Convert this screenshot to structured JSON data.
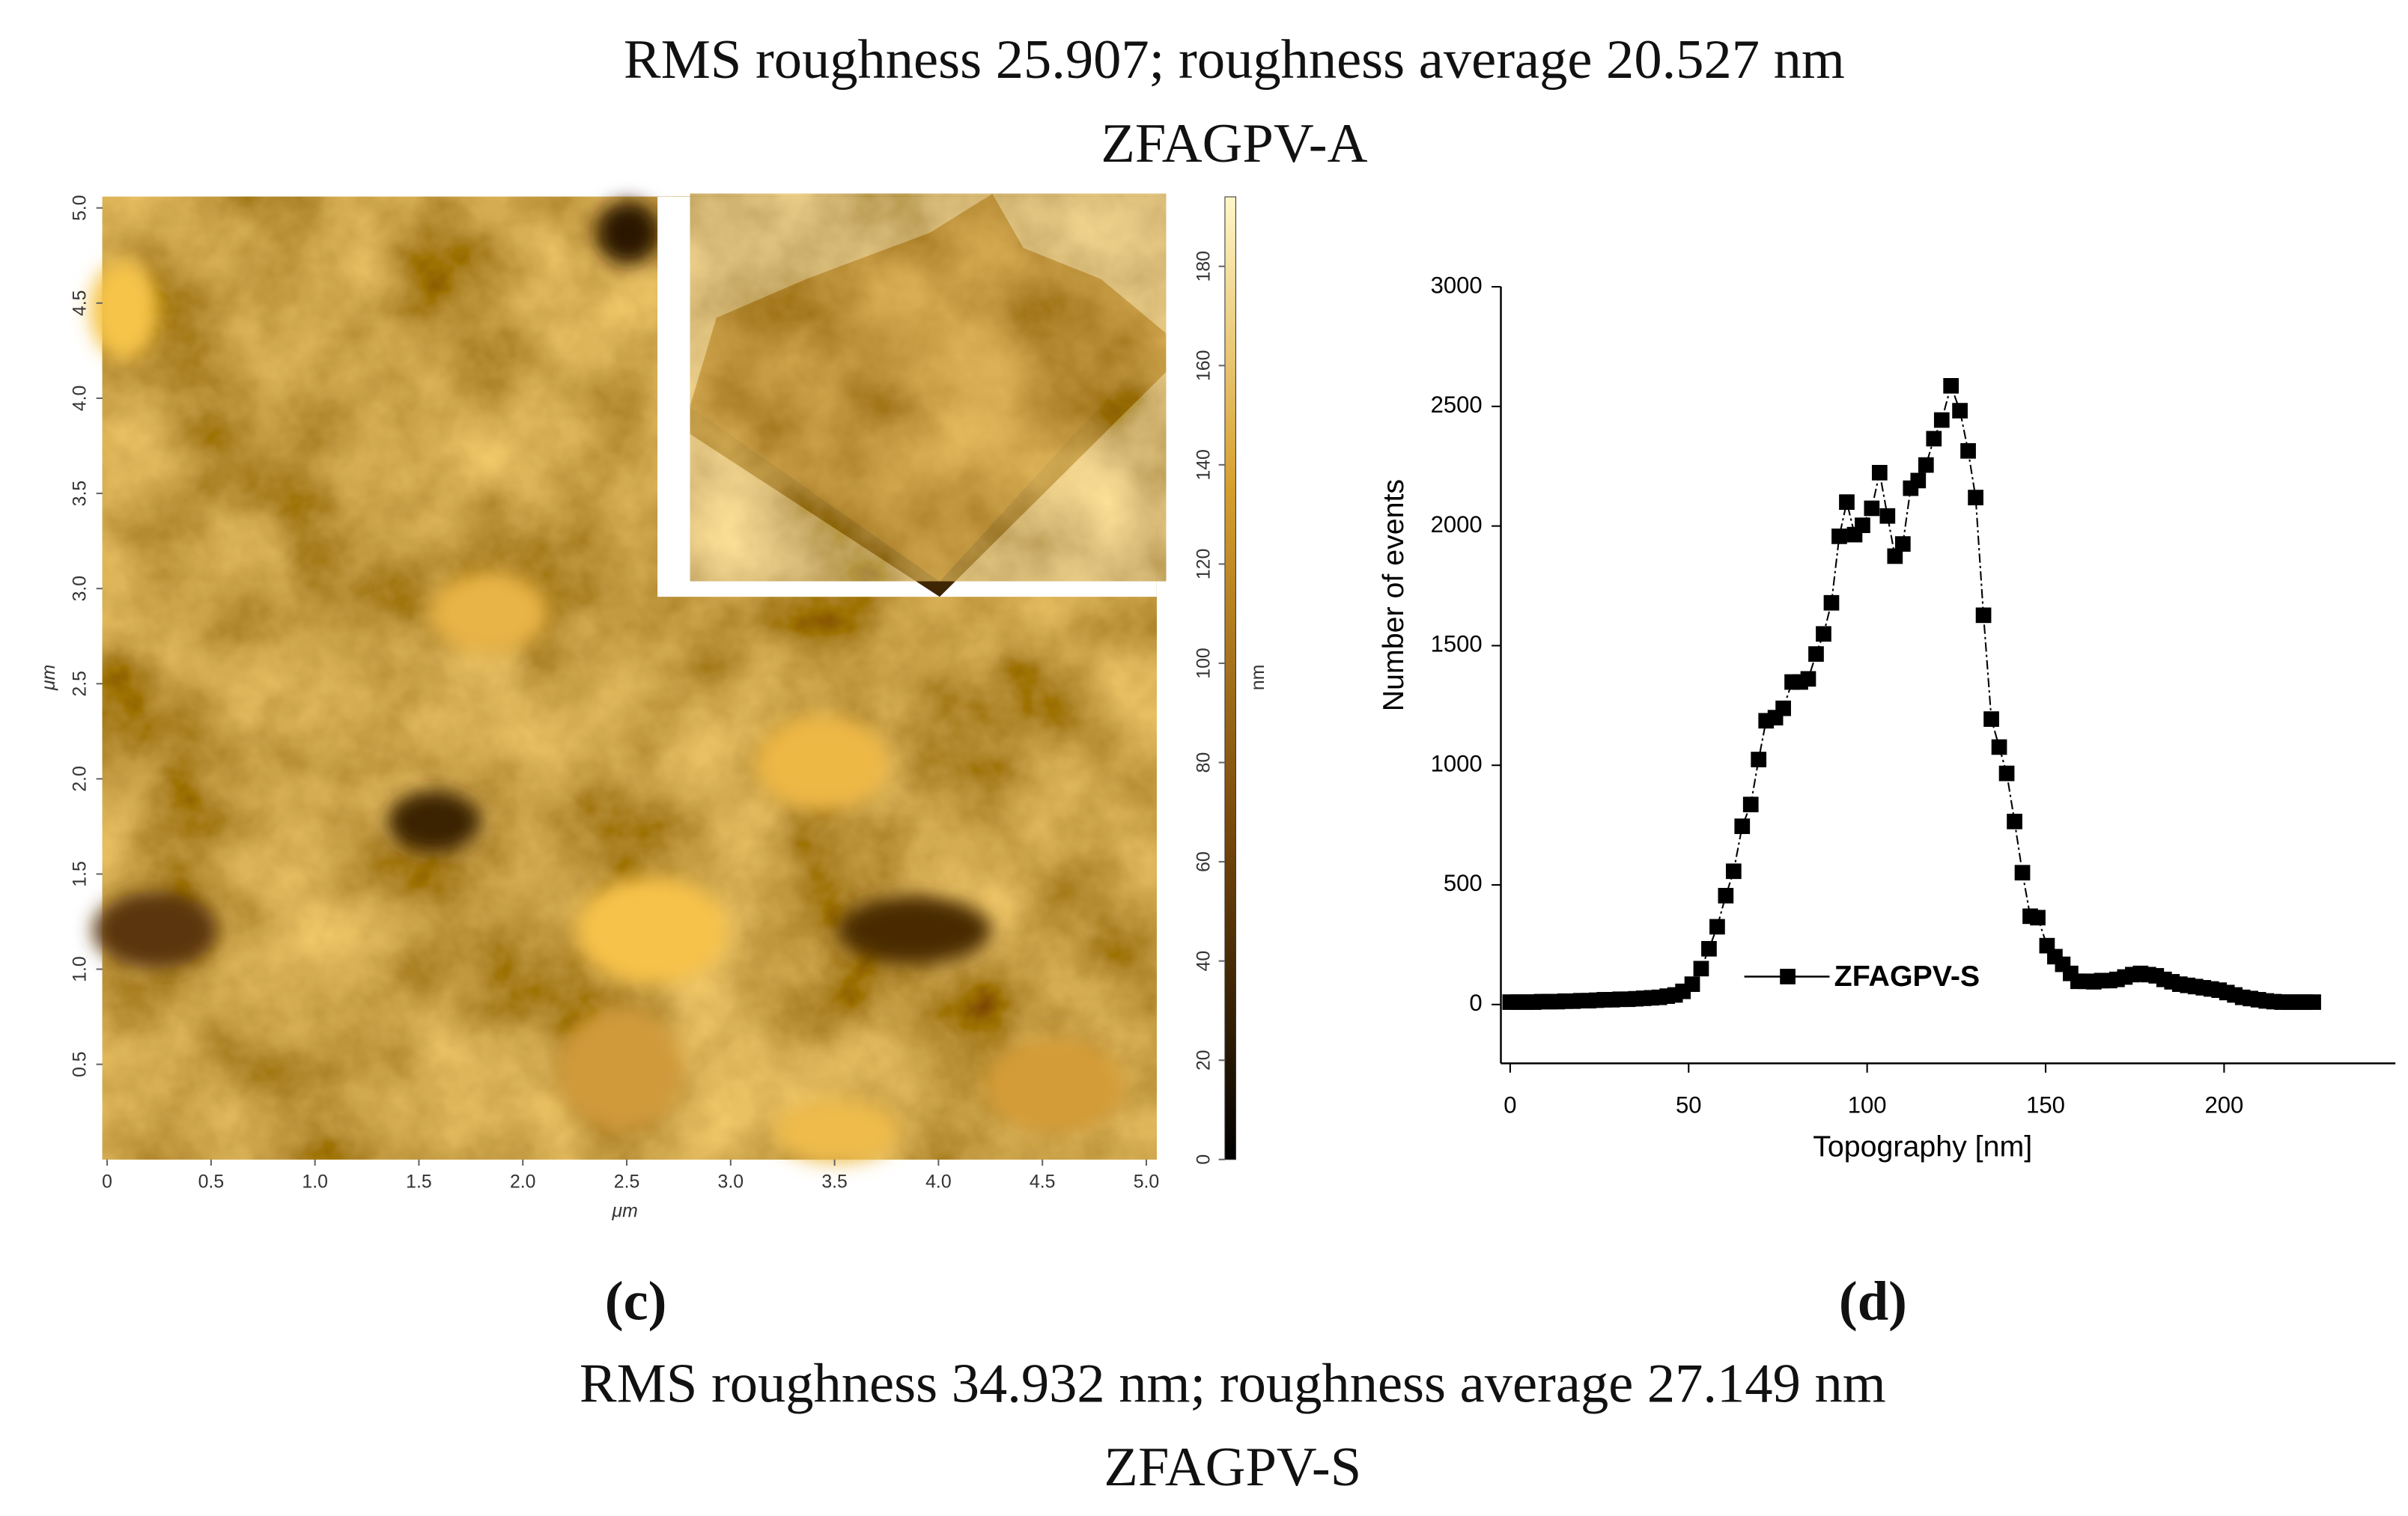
{
  "captions": {
    "top_line1": "RMS roughness 25.907; roughness average 20.527 nm",
    "top_line2": "ZFAGPV-A",
    "label_c": "(c)",
    "label_d": "(d)",
    "bottom_line1": "RMS roughness 34.932 nm; roughness average 27.149 nm",
    "bottom_line2": "ZFAGPV-S"
  },
  "chart_data": [
    {
      "type": "image",
      "x_label": "μm",
      "y_label": "μm",
      "colorbar_label": "nm",
      "xlim": [
        0,
        5.05
      ],
      "ylim": [
        0,
        5.05
      ],
      "xticks": [
        0,
        0.5,
        {
          "value": 1,
          "label": "1.0"
        },
        1.5,
        {
          "value": 2,
          "label": "2.0"
        },
        2.5,
        {
          "value": 3,
          "label": "3.0"
        },
        3.5,
        {
          "value": 4,
          "label": "4.0"
        },
        4.5,
        {
          "value": 5,
          "label": "5.0"
        }
      ],
      "yticks": [
        0.5,
        {
          "value": 1,
          "label": "1.0"
        },
        1.5,
        {
          "value": 2,
          "label": "2.0"
        },
        2.5,
        {
          "value": 3,
          "label": "3.0"
        },
        3.5,
        {
          "value": 4,
          "label": "4.0"
        },
        4.5,
        {
          "value": 5,
          "label": "5.0"
        }
      ],
      "clim": [
        0,
        194
      ],
      "cticks": [
        0,
        20,
        40,
        60,
        80,
        100,
        120,
        140,
        160,
        180
      ]
    },
    {
      "type": "line",
      "x_label": "Topography [nm]",
      "y_label": "Number of events",
      "xlim": [
        -2.6,
        248
      ],
      "ylim": [
        -246,
        3000
      ],
      "xticks": [
        0,
        50,
        100,
        150,
        200
      ],
      "yticks": [
        0,
        500,
        1000,
        1500,
        2000,
        2500,
        3000
      ],
      "x": [
        0,
        2.2,
        4.4,
        6.6,
        8.8,
        11,
        13.2,
        15.4,
        17.6,
        19.8,
        22,
        24.2,
        26.4,
        28.6,
        30.8,
        33,
        35.2,
        37.4,
        39.6,
        41.8,
        44,
        46.2,
        48.4,
        51,
        53.5,
        55.7,
        58,
        60.4,
        62.6,
        65,
        67.4,
        69.6,
        71.7,
        74.3,
        76.5,
        79,
        81.3,
        83.5,
        85.7,
        87.8,
        90,
        92.2,
        94.3,
        96.5,
        98.7,
        101.3,
        103.5,
        105.7,
        107.8,
        110,
        112.2,
        114.3,
        116.5,
        118.7,
        120.9,
        123.5,
        126,
        128.3,
        130.4,
        132.6,
        134.8,
        137,
        139.1,
        141.3,
        143.5,
        145.7,
        147.8,
        150.4,
        152.6,
        154.8,
        157,
        159.1,
        161.3,
        163.5,
        165.7,
        167.9,
        170,
        172.2,
        174.4,
        176.6,
        178.8,
        181,
        183.2,
        185.4,
        187.6,
        189.8,
        192,
        194.2,
        196.4,
        198.6,
        200.8,
        203,
        205.2,
        207.4,
        209.6,
        211.8,
        214,
        216.2,
        218.4,
        220.6,
        222.8,
        225
      ],
      "series": [
        {
          "name": "ZFAGPV-S",
          "color": "#000000",
          "values": [
            10,
            10,
            10,
            10,
            12,
            12,
            12,
            14,
            14,
            16,
            16,
            18,
            20,
            20,
            22,
            22,
            24,
            26,
            28,
            30,
            35,
            40,
            55,
            85,
            150,
            233,
            325,
            455,
            557,
            745,
            836,
            1024,
            1186,
            1199,
            1238,
            1348,
            1348,
            1361,
            1465,
            1549,
            1679,
            1957,
            2100,
            1964,
            2003,
            2074,
            2223,
            2042,
            1874,
            1925,
            2158,
            2190,
            2255,
            2365,
            2443,
            2586,
            2482,
            2314,
            2119,
            1627,
            1193,
            1076,
            966,
            765,
            551,
            369,
            363,
            246,
            200,
            168,
            130,
            97,
            97,
            95,
            100,
            100,
            105,
            115,
            125,
            130,
            125,
            120,
            105,
            95,
            85,
            80,
            75,
            70,
            65,
            60,
            50,
            40,
            30,
            25,
            20,
            15,
            12,
            10,
            10,
            10,
            10,
            10
          ]
        }
      ],
      "legend": "inside"
    }
  ]
}
